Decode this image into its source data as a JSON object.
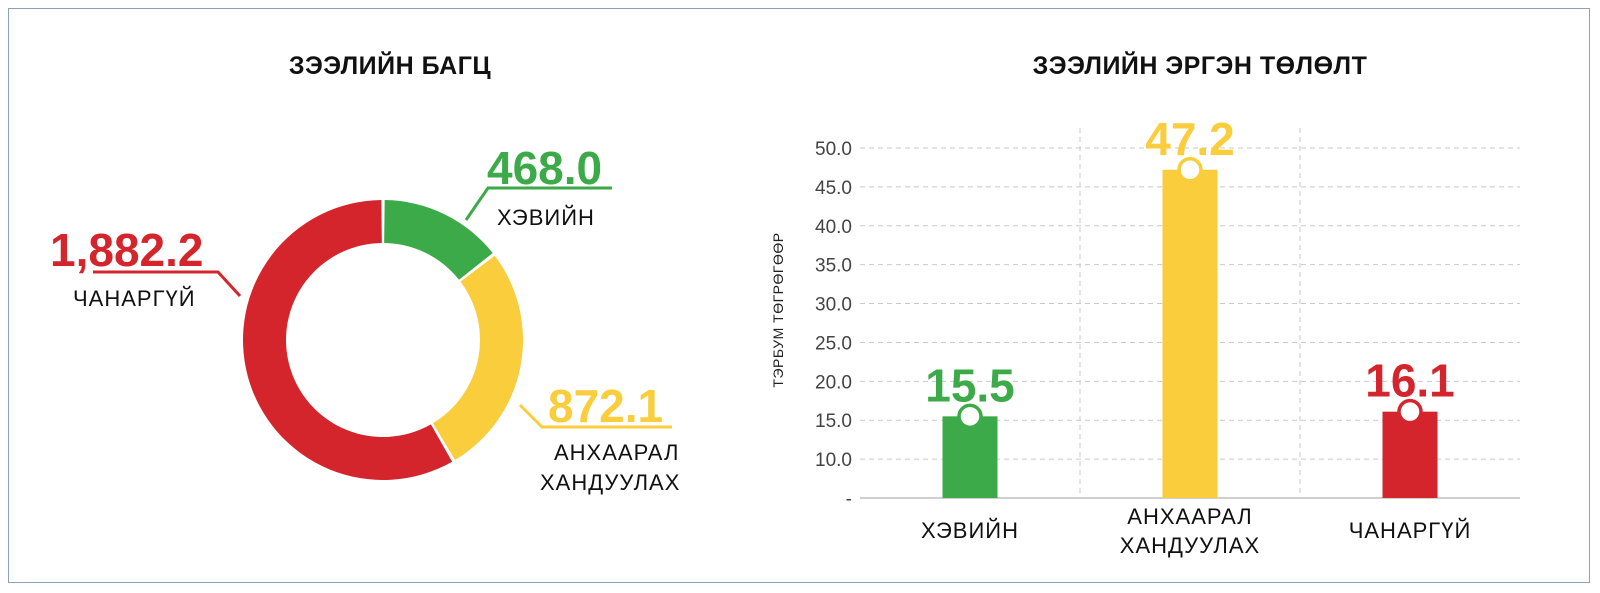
{
  "colors": {
    "green": "#3caa48",
    "yellow": "#f9cd3b",
    "red": "#d4252d"
  },
  "chart_data": [
    {
      "type": "pie",
      "title": "ЗЭЭЛИЙН БАГЦ",
      "slices": [
        {
          "label": "ХЭВИЙН",
          "value": 468.0,
          "value_label": "468.0",
          "color": "#3caa48"
        },
        {
          "label": "АНХААРАЛ ХАНДУУЛАХ",
          "label_lines": [
            "АНХААРАЛ",
            "ХАНДУУЛАХ"
          ],
          "value": 872.1,
          "value_label": "872.1",
          "color": "#f9cd3b"
        },
        {
          "label": "ЧАНАРГҮЙ",
          "value": 1882.2,
          "value_label": "1,882.2",
          "color": "#d4252d"
        }
      ]
    },
    {
      "type": "bar",
      "title": "ЗЭЭЛИЙН ЭРГЭН ТӨЛӨЛТ",
      "ylabel": "ТЭРБУМ ТӨГРӨГӨӨР",
      "categories": [
        "ХЭВИЙН",
        "АНХААРАЛ ХАНДУУЛАХ",
        "ЧАНАРГҮЙ"
      ],
      "category_lines": [
        [
          "ХЭВИЙН"
        ],
        [
          "АНХААРАЛ",
          "ХАНДУУЛАХ"
        ],
        [
          "ЧАНАРГҮЙ"
        ]
      ],
      "values": [
        15.5,
        47.2,
        16.1
      ],
      "value_labels": [
        "15.5",
        "47.2",
        "16.1"
      ],
      "colors": [
        "#3caa48",
        "#f9cd3b",
        "#d4252d"
      ],
      "ylim": [
        5,
        50
      ],
      "yticks": [
        5,
        10,
        15,
        20,
        25,
        30,
        35,
        40,
        45,
        50
      ],
      "ytick_labels": [
        "-",
        "10.0",
        "15.0",
        "20.0",
        "25.0",
        "30.0",
        "35.0",
        "40.0",
        "45.0",
        "50.0"
      ],
      "grid": true
    }
  ]
}
